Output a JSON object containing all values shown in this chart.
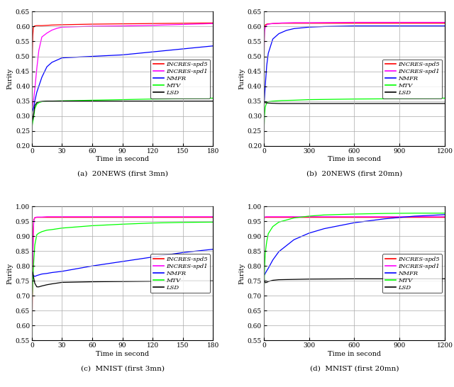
{
  "subplots": [
    {
      "title": "(a)  20NEWS (first 3mn)",
      "xlabel": "Time in second",
      "ylabel": "Purity",
      "xlim": [
        0,
        180
      ],
      "ylim": [
        0.2,
        0.65
      ],
      "xticks": [
        0,
        30,
        60,
        90,
        120,
        150,
        180
      ],
      "yticks": [
        0.2,
        0.25,
        0.3,
        0.35,
        0.4,
        0.45,
        0.5,
        0.55,
        0.6,
        0.65
      ],
      "series": [
        {
          "label": "INCRES-spd5",
          "color": "red",
          "x": [
            0,
            0.3,
            0.6,
            1,
            1.5,
            2,
            3,
            5,
            7,
            10,
            15,
            20,
            30,
            60,
            90,
            120,
            150,
            180
          ],
          "y": [
            0.32,
            0.42,
            0.52,
            0.57,
            0.595,
            0.6,
            0.602,
            0.603,
            0.603,
            0.603,
            0.604,
            0.605,
            0.606,
            0.608,
            0.609,
            0.61,
            0.611,
            0.612
          ]
        },
        {
          "label": "INCRES-spd1",
          "color": "magenta",
          "x": [
            0,
            0.5,
            1,
            2,
            3,
            5,
            7,
            10,
            15,
            20,
            25,
            30,
            60,
            90,
            120,
            150,
            180
          ],
          "y": [
            0.3,
            0.32,
            0.34,
            0.36,
            0.39,
            0.46,
            0.52,
            0.565,
            0.578,
            0.588,
            0.594,
            0.598,
            0.601,
            0.602,
            0.604,
            0.607,
            0.61
          ]
        },
        {
          "label": "NMFR",
          "color": "blue",
          "x": [
            0,
            1,
            2,
            3,
            5,
            7,
            10,
            15,
            20,
            30,
            60,
            90,
            120,
            150,
            180
          ],
          "y": [
            0.31,
            0.32,
            0.33,
            0.35,
            0.38,
            0.4,
            0.43,
            0.465,
            0.48,
            0.495,
            0.5,
            0.505,
            0.515,
            0.525,
            0.535
          ]
        },
        {
          "label": "MTV",
          "color": "lime",
          "x": [
            0,
            0.5,
            1,
            2,
            3,
            5,
            7,
            10,
            15,
            20,
            30,
            60,
            90,
            120,
            150,
            180
          ],
          "y": [
            0.245,
            0.27,
            0.28,
            0.3,
            0.325,
            0.34,
            0.345,
            0.348,
            0.35,
            0.35,
            0.351,
            0.353,
            0.355,
            0.357,
            0.358,
            0.36
          ]
        },
        {
          "label": "LSD",
          "color": "black",
          "x": [
            0,
            0.5,
            1,
            2,
            3,
            5,
            7,
            10,
            15,
            20,
            30,
            60,
            90,
            120,
            150,
            180
          ],
          "y": [
            0.31,
            0.285,
            0.29,
            0.31,
            0.335,
            0.345,
            0.348,
            0.349,
            0.35,
            0.35,
            0.35,
            0.35,
            0.35,
            0.35,
            0.35,
            0.35
          ]
        }
      ]
    },
    {
      "title": "(b)  20NEWS (first 20mn)",
      "xlabel": "Time in second",
      "ylabel": "Purity",
      "xlim": [
        0,
        1200
      ],
      "ylim": [
        0.2,
        0.65
      ],
      "xticks": [
        0,
        300,
        600,
        900,
        1200
      ],
      "yticks": [
        0.2,
        0.25,
        0.3,
        0.35,
        0.4,
        0.45,
        0.5,
        0.55,
        0.6,
        0.65
      ],
      "series": [
        {
          "label": "INCRES-spd5",
          "color": "red",
          "x": [
            0,
            2,
            4,
            6,
            10,
            15,
            20,
            30,
            60,
            120,
            200,
            300,
            600,
            900,
            1200
          ],
          "y": [
            0.32,
            0.5,
            0.58,
            0.6,
            0.605,
            0.607,
            0.608,
            0.609,
            0.61,
            0.611,
            0.611,
            0.611,
            0.611,
            0.611,
            0.611
          ]
        },
        {
          "label": "INCRES-spd1",
          "color": "magenta",
          "x": [
            0,
            2,
            4,
            6,
            10,
            15,
            20,
            30,
            60,
            120,
            200,
            300,
            600,
            900,
            1200
          ],
          "y": [
            0.3,
            0.46,
            0.56,
            0.585,
            0.597,
            0.602,
            0.606,
            0.608,
            0.61,
            0.612,
            0.613,
            0.613,
            0.614,
            0.614,
            0.614
          ]
        },
        {
          "label": "NMFR",
          "color": "blue",
          "x": [
            0,
            5,
            10,
            20,
            30,
            60,
            100,
            150,
            200,
            300,
            400,
            500,
            600,
            700,
            800,
            900,
            1000,
            1100,
            1200
          ],
          "y": [
            0.32,
            0.36,
            0.4,
            0.47,
            0.51,
            0.558,
            0.576,
            0.587,
            0.593,
            0.598,
            0.6,
            0.601,
            0.602,
            0.602,
            0.602,
            0.602,
            0.602,
            0.602,
            0.602
          ]
        },
        {
          "label": "MTV",
          "color": "lime",
          "x": [
            0,
            3,
            5,
            10,
            20,
            30,
            60,
            120,
            200,
            300,
            600,
            900,
            1200
          ],
          "y": [
            0.245,
            0.27,
            0.3,
            0.33,
            0.345,
            0.348,
            0.35,
            0.352,
            0.353,
            0.355,
            0.357,
            0.358,
            0.36
          ]
        },
        {
          "label": "LSD",
          "color": "black",
          "x": [
            0,
            3,
            5,
            10,
            20,
            50,
            100,
            200,
            400,
            600,
            900,
            1200
          ],
          "y": [
            0.32,
            0.345,
            0.345,
            0.345,
            0.344,
            0.343,
            0.342,
            0.342,
            0.342,
            0.342,
            0.342,
            0.342
          ]
        }
      ]
    },
    {
      "title": "(c)  MNIST (first 3mn)",
      "xlabel": "Time in second",
      "ylabel": "Purity",
      "xlim": [
        0,
        180
      ],
      "ylim": [
        0.55,
        1.0
      ],
      "xticks": [
        0,
        30,
        60,
        90,
        120,
        150,
        180
      ],
      "yticks": [
        0.55,
        0.6,
        0.65,
        0.7,
        0.75,
        0.8,
        0.85,
        0.9,
        0.95,
        1.0
      ],
      "series": [
        {
          "label": "INCRES-spd5",
          "color": "red",
          "x": [
            0,
            0.3,
            0.6,
            1,
            1.5,
            2,
            3,
            5,
            7,
            10,
            15,
            20,
            30,
            60,
            90,
            120,
            150,
            180
          ],
          "y": [
            0.575,
            0.6,
            0.7,
            0.82,
            0.92,
            0.955,
            0.962,
            0.963,
            0.963,
            0.963,
            0.963,
            0.963,
            0.963,
            0.963,
            0.963,
            0.963,
            0.963,
            0.963
          ]
        },
        {
          "label": "INCRES-spd1",
          "color": "magenta",
          "x": [
            0,
            0.3,
            0.6,
            1,
            1.5,
            2,
            3,
            5,
            7,
            10,
            15,
            20,
            30,
            60,
            90,
            120,
            150,
            180
          ],
          "y": [
            0.64,
            0.68,
            0.74,
            0.83,
            0.91,
            0.952,
            0.962,
            0.964,
            0.964,
            0.964,
            0.965,
            0.965,
            0.965,
            0.965,
            0.965,
            0.965,
            0.965,
            0.965
          ]
        },
        {
          "label": "NMFR",
          "color": "blue",
          "x": [
            0,
            1,
            2,
            3,
            5,
            7,
            10,
            15,
            20,
            30,
            60,
            90,
            120,
            150,
            180
          ],
          "y": [
            0.775,
            0.77,
            0.767,
            0.765,
            0.768,
            0.77,
            0.773,
            0.775,
            0.778,
            0.782,
            0.8,
            0.815,
            0.83,
            0.845,
            0.856
          ]
        },
        {
          "label": "MTV",
          "color": "lime",
          "x": [
            0,
            0.5,
            1,
            2,
            3,
            5,
            7,
            10,
            15,
            20,
            30,
            60,
            90,
            120,
            150,
            180
          ],
          "y": [
            0.655,
            0.7,
            0.75,
            0.82,
            0.87,
            0.905,
            0.91,
            0.915,
            0.92,
            0.922,
            0.927,
            0.935,
            0.94,
            0.944,
            0.946,
            0.947
          ]
        },
        {
          "label": "LSD",
          "color": "black",
          "x": [
            0,
            0.5,
            1,
            2,
            3,
            5,
            7,
            10,
            15,
            20,
            30,
            60,
            90,
            120,
            150,
            180
          ],
          "y": [
            0.775,
            0.782,
            0.778,
            0.758,
            0.742,
            0.73,
            0.73,
            0.733,
            0.737,
            0.74,
            0.745,
            0.747,
            0.748,
            0.749,
            0.75,
            0.75
          ]
        }
      ]
    },
    {
      "title": "(d)  MNIST (first 20mn)",
      "xlabel": "Time in second",
      "ylabel": "Purity",
      "xlim": [
        0,
        1200
      ],
      "ylim": [
        0.55,
        1.0
      ],
      "xticks": [
        0,
        300,
        600,
        900,
        1200
      ],
      "yticks": [
        0.55,
        0.6,
        0.65,
        0.7,
        0.75,
        0.8,
        0.85,
        0.9,
        0.95,
        1.0
      ],
      "series": [
        {
          "label": "INCRES-spd5",
          "color": "red",
          "x": [
            0,
            1,
            2,
            3,
            5,
            8,
            12,
            20,
            30,
            60,
            120,
            200,
            300,
            600,
            900,
            1200
          ],
          "y": [
            0.575,
            0.82,
            0.945,
            0.96,
            0.963,
            0.963,
            0.963,
            0.963,
            0.963,
            0.963,
            0.963,
            0.963,
            0.963,
            0.963,
            0.963,
            0.963
          ]
        },
        {
          "label": "INCRES-spd1",
          "color": "magenta",
          "x": [
            0,
            1,
            2,
            3,
            5,
            8,
            12,
            20,
            30,
            60,
            120,
            200,
            300,
            600,
            900,
            1200
          ],
          "y": [
            0.64,
            0.84,
            0.948,
            0.961,
            0.963,
            0.964,
            0.965,
            0.965,
            0.965,
            0.965,
            0.965,
            0.965,
            0.965,
            0.965,
            0.965,
            0.965
          ]
        },
        {
          "label": "NMFR",
          "color": "blue",
          "x": [
            0,
            5,
            10,
            20,
            30,
            60,
            100,
            200,
            300,
            400,
            600,
            800,
            1000,
            1200
          ],
          "y": [
            0.775,
            0.77,
            0.775,
            0.784,
            0.792,
            0.82,
            0.848,
            0.888,
            0.91,
            0.925,
            0.945,
            0.958,
            0.967,
            0.972
          ]
        },
        {
          "label": "MTV",
          "color": "lime",
          "x": [
            0,
            5,
            10,
            20,
            30,
            60,
            100,
            200,
            300,
            400,
            600,
            800,
            1000,
            1200
          ],
          "y": [
            0.655,
            0.785,
            0.843,
            0.882,
            0.908,
            0.932,
            0.947,
            0.961,
            0.967,
            0.971,
            0.974,
            0.976,
            0.977,
            0.977
          ]
        },
        {
          "label": "LSD",
          "color": "black",
          "x": [
            0,
            5,
            10,
            20,
            30,
            60,
            100,
            200,
            300,
            600,
            900,
            1200
          ],
          "y": [
            0.775,
            0.748,
            0.744,
            0.745,
            0.748,
            0.752,
            0.754,
            0.755,
            0.756,
            0.757,
            0.757,
            0.757
          ]
        }
      ]
    }
  ],
  "legend_labels": [
    "INCRES-spd5",
    "INCRES-spd1",
    "NMFR",
    "MTV",
    "LSD"
  ],
  "legend_colors": [
    "red",
    "magenta",
    "blue",
    "lime",
    "black"
  ]
}
